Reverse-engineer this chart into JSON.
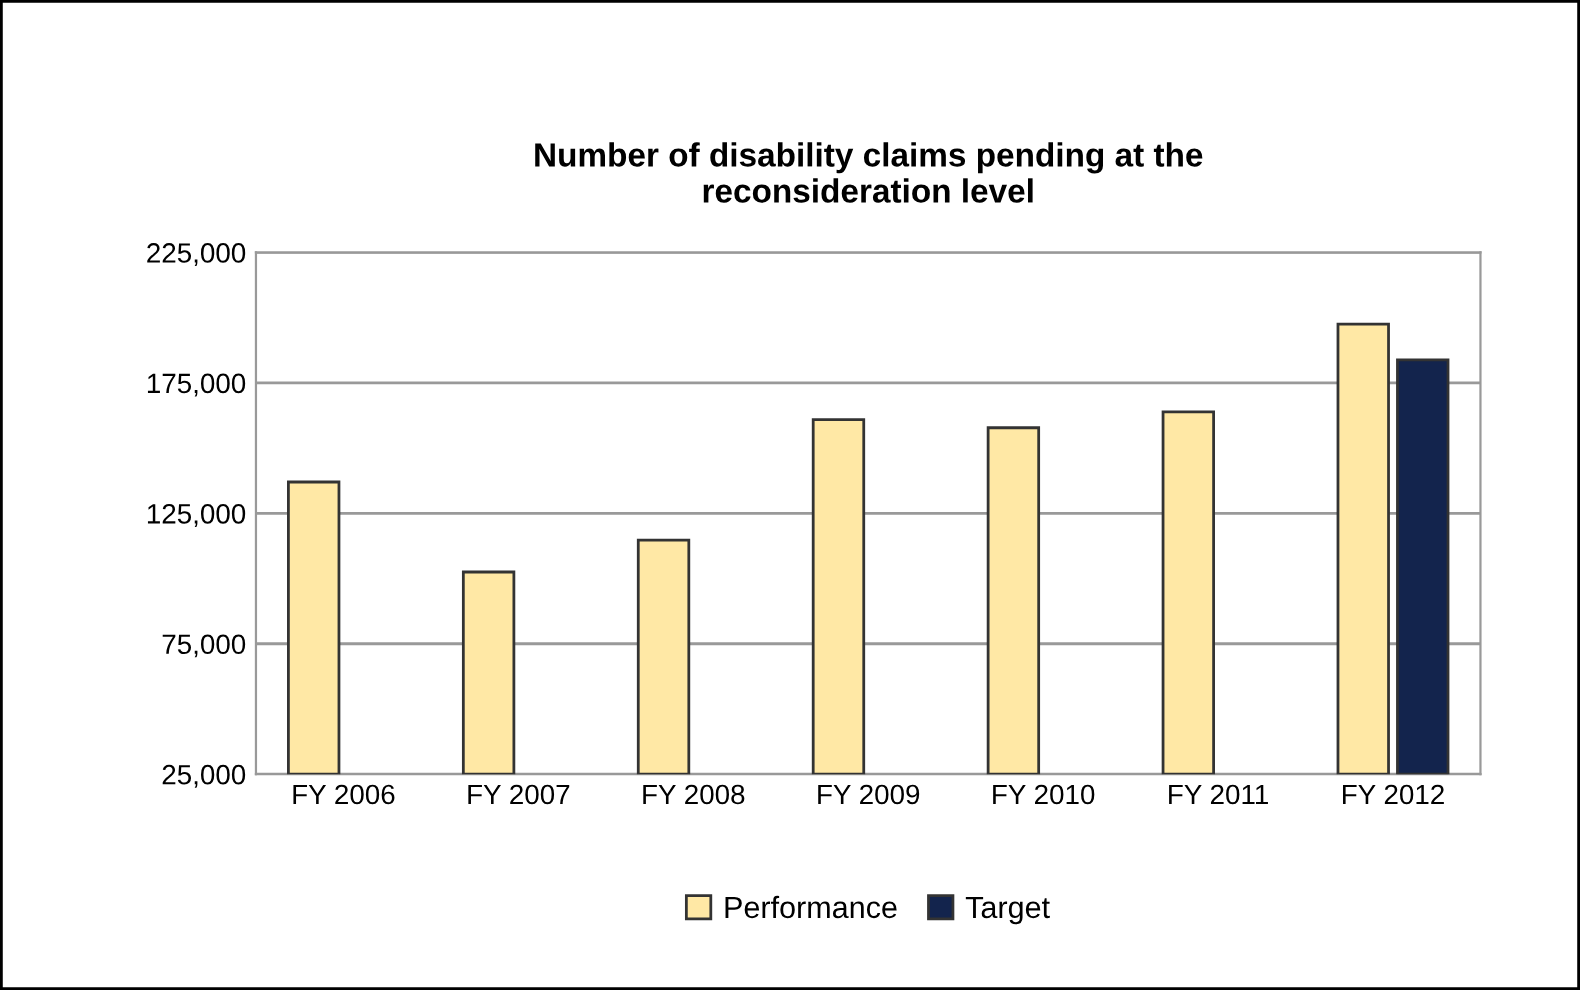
{
  "chart_data": {
    "type": "bar",
    "title": "Number of disability claims pending at the\nreconsideration level",
    "categories": [
      "FY 2006",
      "FY 2007",
      "FY 2008",
      "FY 2009",
      "FY 2010",
      "FY 2011",
      "FY 2012"
    ],
    "series": [
      {
        "name": "Performance",
        "color": "#ffe8a5",
        "values": [
          137000,
          102500,
          114700,
          160900,
          157800,
          163900,
          197500
        ]
      },
      {
        "name": "Target",
        "color": "#13244d",
        "values": [
          null,
          null,
          null,
          null,
          null,
          null,
          183800
        ]
      }
    ],
    "ylim": [
      25000,
      225000
    ],
    "yticks": [
      {
        "value": 25000,
        "label": "25,000"
      },
      {
        "value": 75000,
        "label": "75,000"
      },
      {
        "value": 125000,
        "label": "125,000"
      },
      {
        "value": 175000,
        "label": "175,000"
      },
      {
        "value": 225000,
        "label": "225,000"
      }
    ],
    "grid": "y",
    "legend": "bottom"
  }
}
